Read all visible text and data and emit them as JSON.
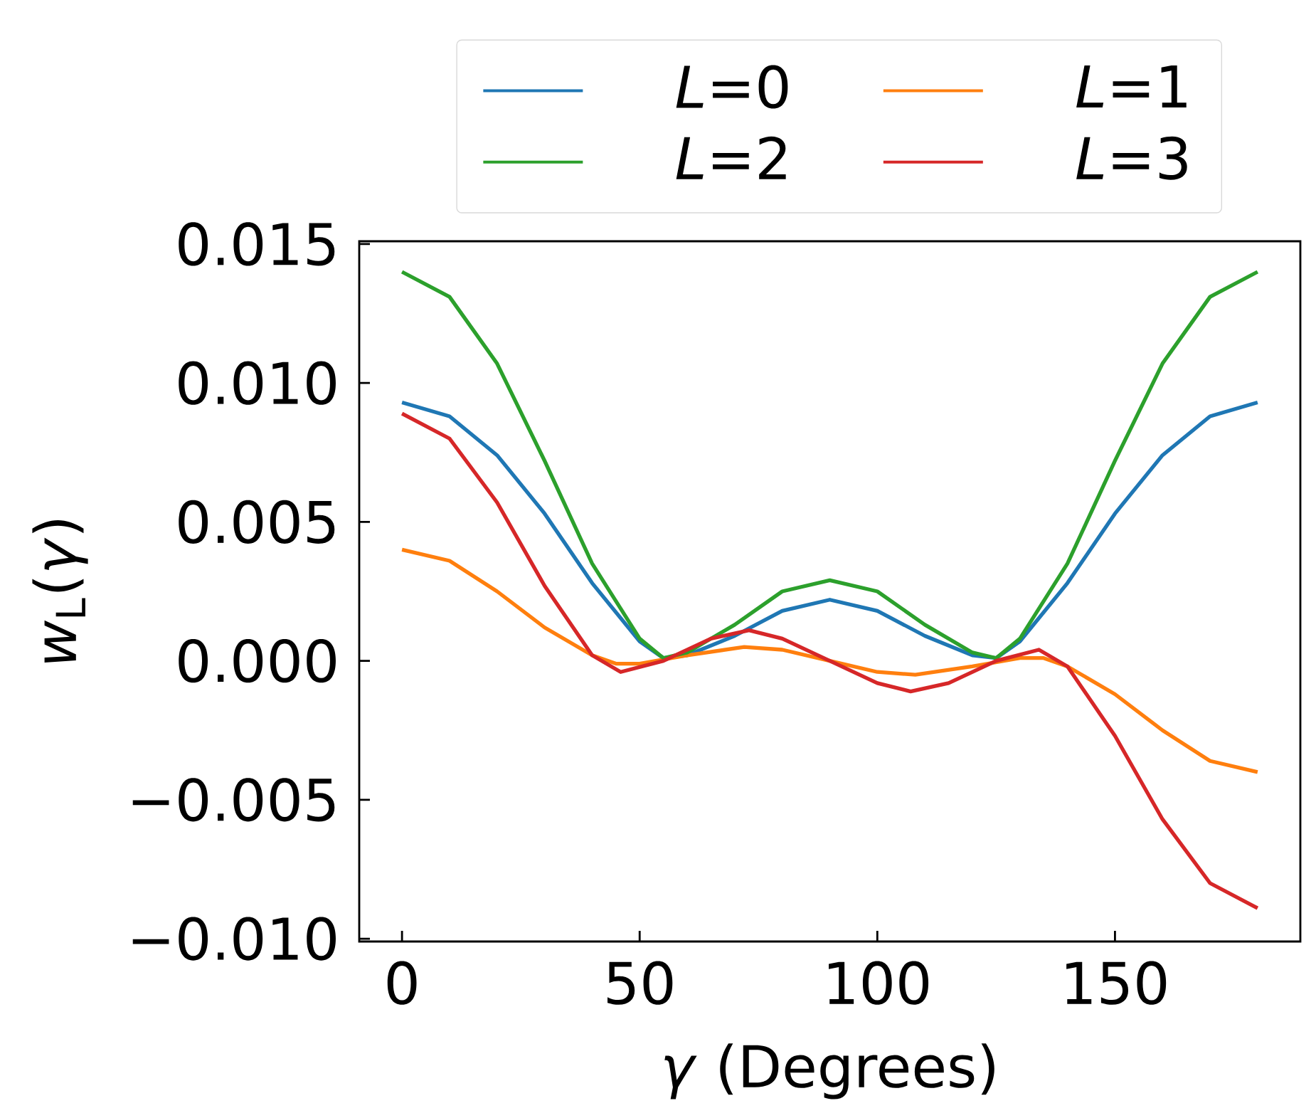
{
  "chart_data": {
    "type": "line",
    "xlabel": "*γ* (Degrees)",
    "ylabel": "*w*$_{L}$(*γ*)",
    "xlim": [
      -9,
      189
    ],
    "ylim": [
      -0.0101,
      0.0151
    ],
    "xticks": [
      0,
      50,
      100,
      150
    ],
    "yticks": [
      {
        "value": -0.01,
        "label": "−0.010"
      },
      {
        "value": -0.005,
        "label": "−0.005"
      },
      {
        "value": 0,
        "label": "0.000"
      },
      {
        "value": 0.005,
        "label": "0.005"
      },
      {
        "value": 0.01,
        "label": "0.010"
      },
      {
        "value": 0.015,
        "label": "0.015"
      }
    ],
    "legend": "top",
    "grid": false,
    "marker": "none",
    "line_style": "solid",
    "series": [
      {
        "name": "*L*=0",
        "color": "#1f77b4",
        "x": [
          0,
          10,
          20,
          30,
          40,
          50,
          55,
          60,
          70,
          80,
          90,
          100,
          110,
          120,
          125,
          130,
          140,
          150,
          160,
          170,
          180
        ],
        "values": [
          0.0093,
          0.0088,
          0.0074,
          0.0053,
          0.0028,
          0.0007,
          0.0001,
          0.0002,
          0.0009,
          0.0018,
          0.0022,
          0.0018,
          0.0009,
          0.0002,
          0.0001,
          0.0007,
          0.0028,
          0.0053,
          0.0074,
          0.0088,
          0.0093
        ]
      },
      {
        "name": "*L*=1",
        "color": "#ff7f0e",
        "x": [
          0,
          10,
          20,
          30,
          40,
          45,
          50,
          60,
          72,
          80,
          90,
          100,
          108,
          120,
          130,
          135,
          140,
          150,
          160,
          170,
          180
        ],
        "values": [
          0.004,
          0.0036,
          0.0025,
          0.0012,
          0.0002,
          -0.0001,
          -0.0001,
          0.0002,
          0.0005,
          0.0004,
          0.0,
          -0.0004,
          -0.0005,
          -0.0002,
          0.0001,
          0.0001,
          -0.0002,
          -0.0012,
          -0.0025,
          -0.0036,
          -0.004
        ]
      },
      {
        "name": "*L*=2",
        "color": "#2ca02c",
        "x": [
          0,
          10,
          20,
          30,
          40,
          50,
          55,
          60,
          70,
          80,
          90,
          100,
          110,
          120,
          125,
          130,
          140,
          150,
          160,
          170,
          180
        ],
        "values": [
          0.014,
          0.0131,
          0.0107,
          0.0072,
          0.0035,
          0.0008,
          0.0001,
          0.0003,
          0.0013,
          0.0025,
          0.0029,
          0.0025,
          0.0013,
          0.0003,
          0.0001,
          0.0008,
          0.0035,
          0.0072,
          0.0107,
          0.0131,
          0.014
        ]
      },
      {
        "name": "*L*=3",
        "color": "#d62728",
        "x": [
          0,
          10,
          20,
          30,
          40,
          46,
          55,
          65,
          73,
          80,
          90,
          100,
          107,
          115,
          125,
          134,
          140,
          150,
          160,
          170,
          180
        ],
        "values": [
          0.0089,
          0.008,
          0.0057,
          0.0027,
          0.0002,
          -0.0004,
          0.0,
          0.0008,
          0.0011,
          0.0008,
          0.0,
          -0.0008,
          -0.0011,
          -0.0008,
          0.0,
          0.0004,
          -0.0002,
          -0.0027,
          -0.0057,
          -0.008,
          -0.0089
        ]
      }
    ]
  }
}
